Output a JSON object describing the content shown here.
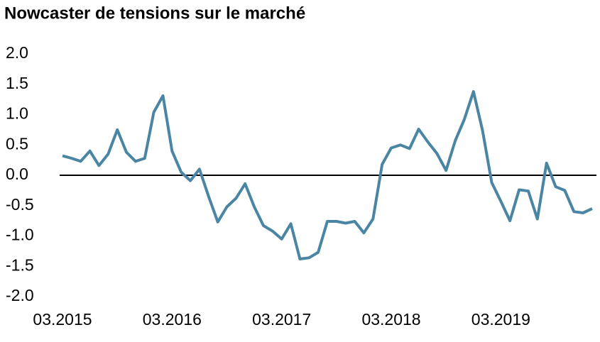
{
  "chart_data": {
    "type": "line",
    "title": "Nowcaster de tensions sur le marché",
    "categories": [
      "03.2015",
      null,
      null,
      null,
      null,
      null,
      null,
      null,
      null,
      null,
      null,
      null,
      "03.2016",
      null,
      null,
      null,
      null,
      null,
      null,
      null,
      null,
      null,
      null,
      null,
      "03.2017",
      null,
      null,
      null,
      null,
      null,
      null,
      null,
      null,
      null,
      null,
      null,
      "03.2018",
      null,
      null,
      null,
      null,
      null,
      null,
      null,
      null,
      null,
      null,
      null,
      "03.2019",
      null,
      null,
      null,
      null,
      null,
      null,
      null,
      null,
      null,
      null
    ],
    "series": [
      {
        "color": "#4a86a3",
        "values": [
          0.32,
          0.28,
          0.23,
          0.4,
          0.16,
          0.35,
          0.75,
          0.38,
          0.23,
          0.28,
          1.04,
          1.31,
          0.4,
          0.05,
          -0.09,
          0.1,
          -0.35,
          -0.77,
          -0.52,
          -0.38,
          -0.14,
          -0.52,
          -0.83,
          -0.92,
          -1.05,
          -0.8,
          -1.38,
          -1.36,
          -1.27,
          -0.76,
          -0.76,
          -0.79,
          -0.76,
          -0.95,
          -0.72,
          0.18,
          0.45,
          0.5,
          0.44,
          0.76,
          0.55,
          0.36,
          0.08,
          0.57,
          0.92,
          1.38,
          0.73,
          -0.12,
          -0.43,
          -0.75,
          -0.24,
          -0.26,
          -0.72,
          0.2,
          -0.19,
          -0.25,
          -0.6,
          -0.62,
          -0.55
        ]
      }
    ],
    "ylim": [
      -2,
      2
    ],
    "yticks": [
      {
        "value": 2,
        "label": "2.0"
      },
      {
        "value": 1.5,
        "label": "1.5"
      },
      {
        "value": 1,
        "label": "1.0"
      },
      {
        "value": 0.5,
        "label": "0.5"
      },
      {
        "value": 0,
        "label": "0.0"
      },
      {
        "value": -0.5,
        "label": "-0.5"
      },
      {
        "value": -1,
        "label": "-1.0"
      },
      {
        "value": -1.5,
        "label": "-1.5"
      },
      {
        "value": -2,
        "label": "-2.0"
      }
    ],
    "zero_line": true
  }
}
